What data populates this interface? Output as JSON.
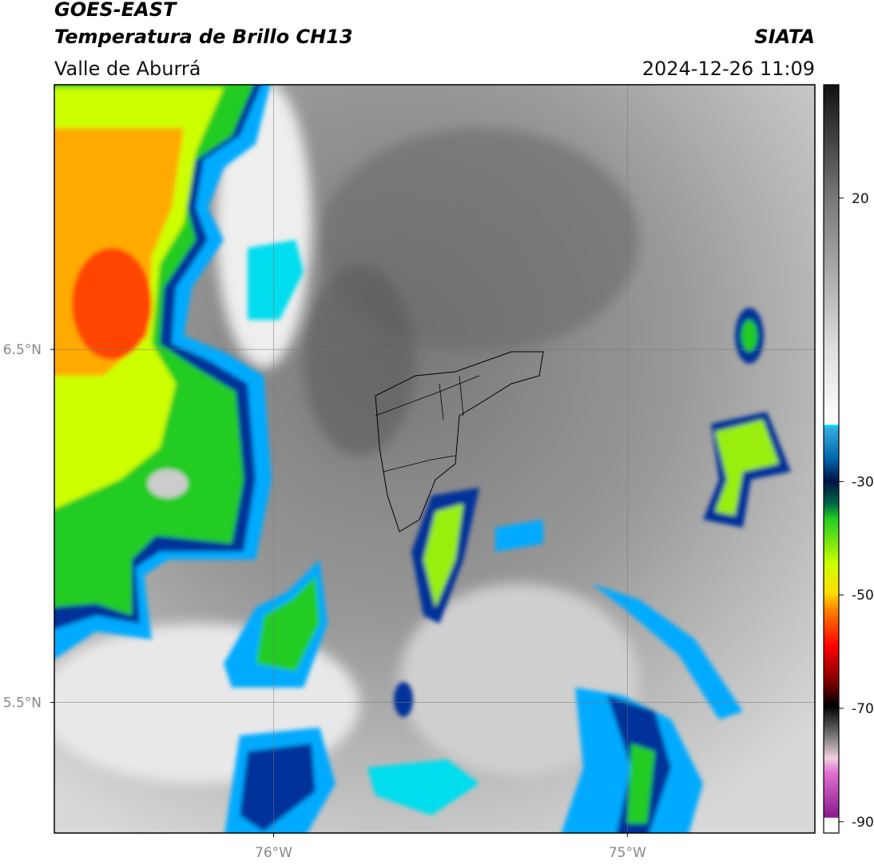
{
  "header": {
    "title": "GOES-EAST",
    "subtitle": "Temperatura de Brillo CH13",
    "source": "SIATA",
    "region": "Valle de Aburrá",
    "timestamp": "2024-12-26 11:09"
  },
  "map": {
    "xlim": [
      -76.62,
      -74.47
    ],
    "ylim": [
      5.13,
      7.25
    ],
    "xticks": [
      {
        "value": -76,
        "label": "76°W"
      },
      {
        "value": -75,
        "label": "75°W"
      }
    ],
    "yticks": [
      {
        "value": 6.5,
        "label": "6.5°N"
      },
      {
        "value": 5.5,
        "label": "5.5°N"
      }
    ],
    "grid": true
  },
  "colorbar": {
    "lim": [
      -92,
      40
    ],
    "ticks": [
      20,
      -30,
      -50,
      -70,
      -90
    ]
  }
}
